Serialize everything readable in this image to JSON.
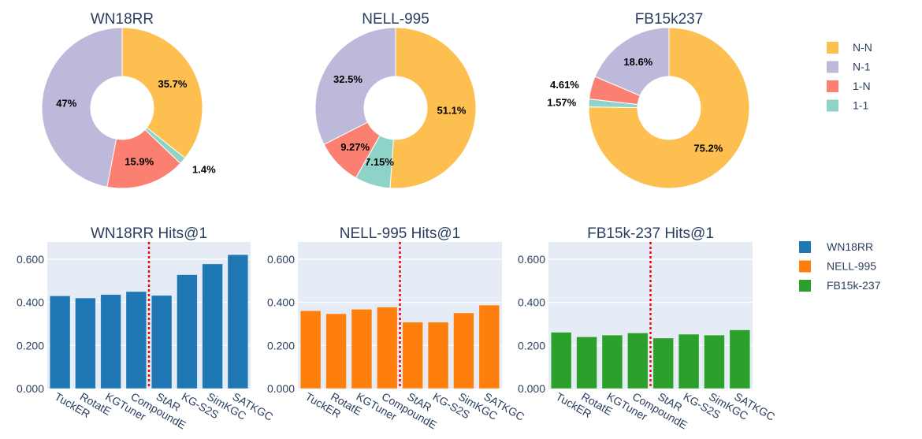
{
  "chart_data": [
    {
      "type": "pie",
      "hole": true,
      "title": "WN18RR",
      "labels": [
        "N-N",
        "1-1",
        "1-N",
        "N-1"
      ],
      "values": [
        35.7,
        1.4,
        15.9,
        47
      ],
      "text": [
        "35.7%",
        "1.4%",
        "15.9%",
        "47%"
      ]
    },
    {
      "type": "pie",
      "hole": true,
      "title": "NELL-995",
      "labels": [
        "N-N",
        "1-1",
        "1-N",
        "N-1"
      ],
      "values": [
        51.1,
        7.15,
        9.27,
        32.5
      ],
      "text": [
        "51.1%",
        "7.15%",
        "9.27%",
        "32.5%"
      ]
    },
    {
      "type": "pie",
      "hole": true,
      "title": "FB15k237",
      "labels": [
        "N-N",
        "1-1",
        "1-N",
        "N-1"
      ],
      "values": [
        75.2,
        1.57,
        4.61,
        18.6
      ],
      "text": [
        "75.2%",
        "1.57%",
        "4.61%",
        "18.6%"
      ]
    },
    {
      "type": "bar",
      "title": "WN18RR Hits@1",
      "series_name": "WN18RR",
      "color": "#1f77b4",
      "categories": [
        "TuckER",
        "RotatE",
        "KGTuner",
        "CompoundE",
        "StAR",
        "KG-S2S",
        "SimKGC",
        "SATKGC"
      ],
      "values": [
        0.43,
        0.42,
        0.436,
        0.45,
        0.432,
        0.528,
        0.578,
        0.621
      ],
      "ylim": [
        0,
        0.68
      ],
      "yticks": [
        "0.000",
        "0.200",
        "0.400",
        "0.600"
      ],
      "divider_after": "CompoundE",
      "grid": true
    },
    {
      "type": "bar",
      "title": "NELL-995 Hits@1",
      "series_name": "NELL-995",
      "color": "#ff7f0e",
      "categories": [
        "TuckER",
        "RotatE",
        "KGTuner",
        "CompoundE",
        "StAR",
        "KG-S2S",
        "SimKGC",
        "SATKGC"
      ],
      "values": [
        0.361,
        0.347,
        0.368,
        0.378,
        0.308,
        0.308,
        0.351,
        0.387
      ],
      "ylim": [
        0,
        0.68
      ],
      "yticks": [
        "0.000",
        "0.200",
        "0.400",
        "0.600"
      ],
      "divider_after": "CompoundE",
      "grid": true
    },
    {
      "type": "bar",
      "title": "FB15k-237 Hits@1",
      "series_name": "FB15k-237",
      "color": "#2ca02c",
      "categories": [
        "TuckER",
        "RotatE",
        "KGTuner",
        "CompoundE",
        "StAR",
        "KG-S2S",
        "SimKGC",
        "SATKGC"
      ],
      "values": [
        0.261,
        0.24,
        0.248,
        0.258,
        0.234,
        0.252,
        0.248,
        0.272
      ],
      "ylim": [
        0,
        0.68
      ],
      "yticks": [
        "0.000",
        "0.200",
        "0.400",
        "0.600"
      ],
      "divider_after": "CompoundE",
      "grid": true
    }
  ],
  "pie_legend": {
    "placement": "right",
    "items": [
      {
        "label": "N-N",
        "color": "#fdbf4f"
      },
      {
        "label": "N-1",
        "color": "#bdb9db"
      },
      {
        "label": "1-N",
        "color": "#fb8072"
      },
      {
        "label": "1-1",
        "color": "#8dd3c7"
      }
    ]
  },
  "bar_legend": {
    "placement": "right",
    "items": [
      {
        "label": "WN18RR",
        "color": "#1f77b4"
      },
      {
        "label": "NELL-995",
        "color": "#ff7f0e"
      },
      {
        "label": "FB15k-237",
        "color": "#2ca02c"
      }
    ]
  },
  "colors": {
    "plot_bg": "#e5ecf6",
    "divider": "#ff0000"
  }
}
